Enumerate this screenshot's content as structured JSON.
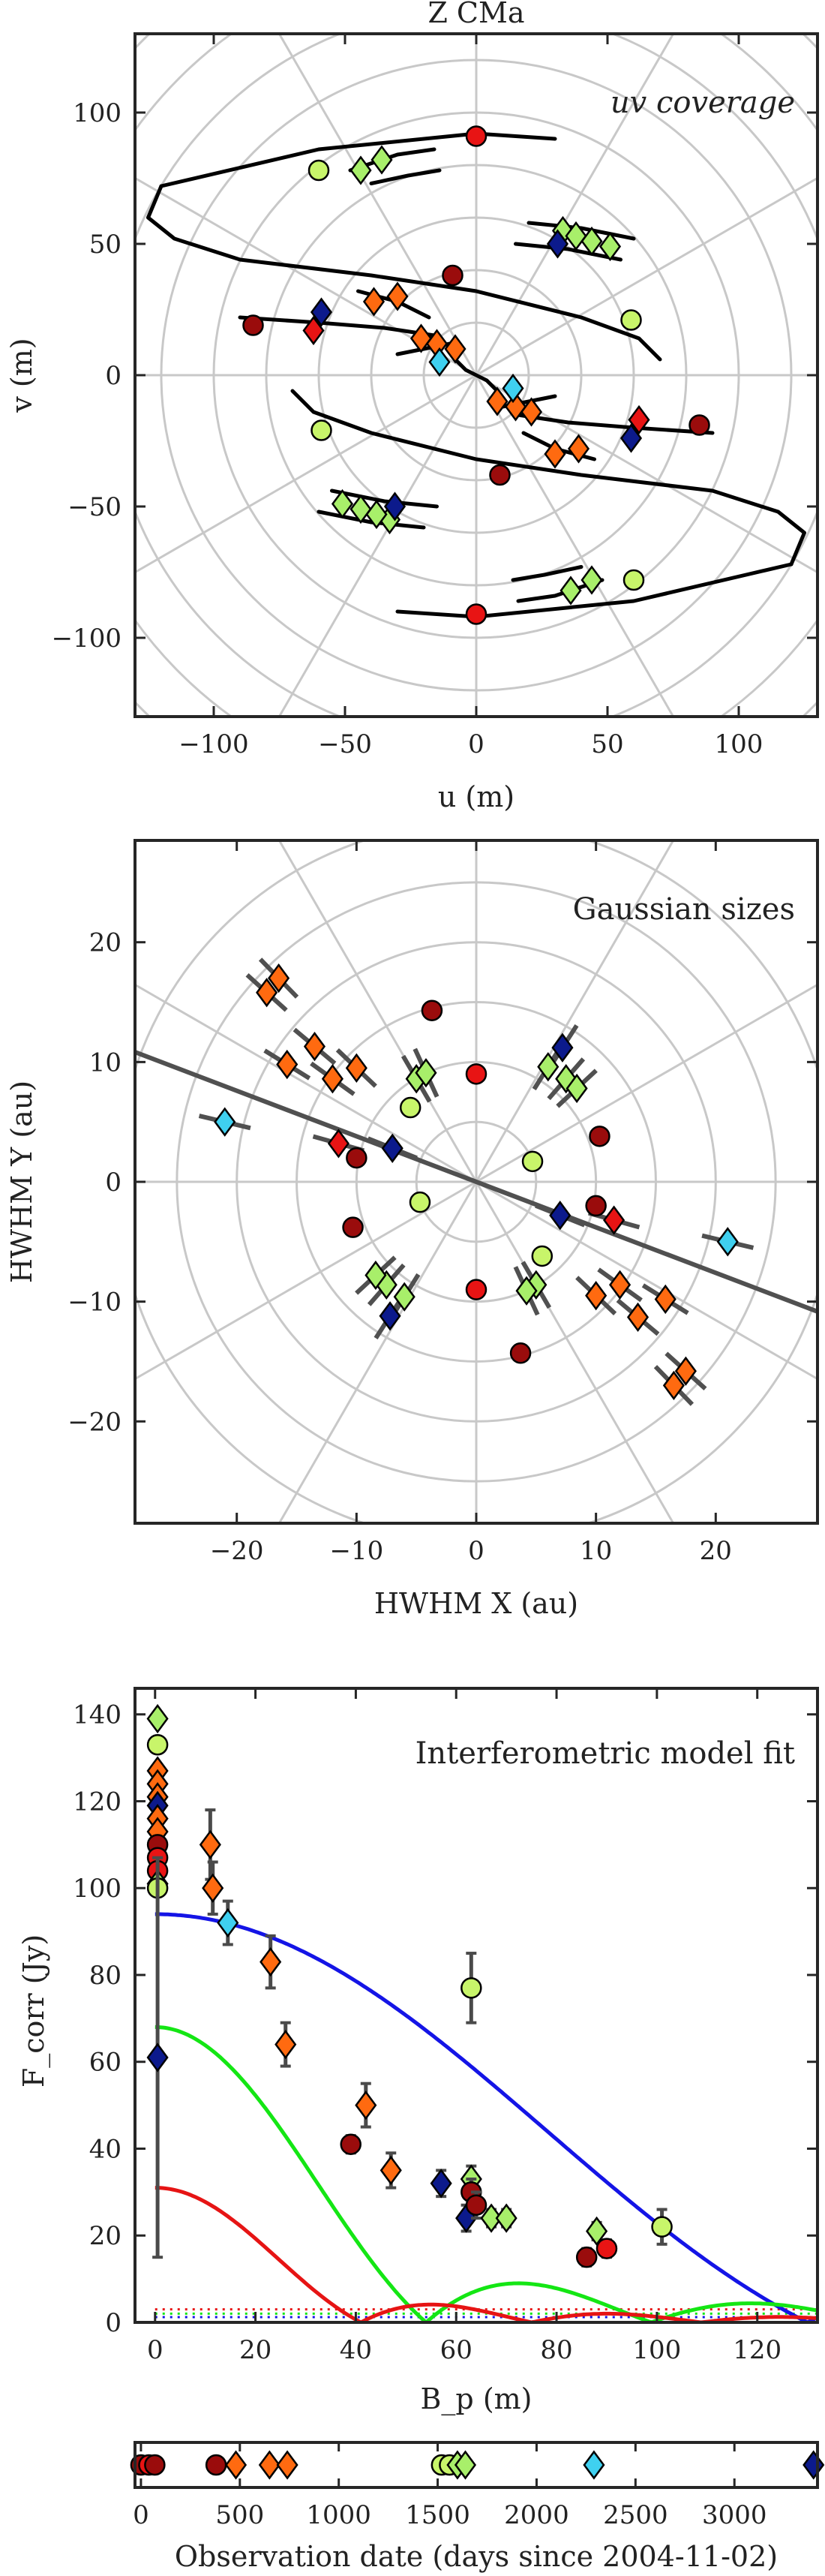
{
  "colors": {
    "cyan": "#3fd0f0",
    "lime": "#c8f56a",
    "lightgreen": "#a8ef6a",
    "orange": "#ff6a10",
    "red": "#e81414",
    "darkred": "#9a0c0c",
    "navy": "#0c1a8c",
    "curve_blue": "#1414e6",
    "curve_green": "#14e614",
    "curve_red": "#e61414",
    "track": "#000000",
    "errorbar": "#4a4a4a",
    "grid": "#c8c8c8"
  },
  "chart_data": [
    {
      "type": "scatter",
      "title": "Z CMa",
      "annotation": "uv coverage",
      "xlabel": "u (m)",
      "ylabel": "v (m)",
      "xlim": [
        -130,
        130
      ],
      "ylim": [
        -130,
        130
      ],
      "xticks": [
        -100,
        -50,
        0,
        50,
        100
      ],
      "yticks": [
        -100,
        -50,
        0,
        50,
        100
      ],
      "polar_grid": true,
      "points": [
        {
          "u": 0,
          "v": 91,
          "marker": "circle",
          "color": "red"
        },
        {
          "u": 0,
          "v": -91,
          "marker": "circle",
          "color": "red"
        },
        {
          "u": -85,
          "v": 19,
          "marker": "circle",
          "color": "darkred"
        },
        {
          "u": 85,
          "v": -19,
          "marker": "circle",
          "color": "darkred"
        },
        {
          "u": -9,
          "v": 38,
          "marker": "circle",
          "color": "darkred"
        },
        {
          "u": 9,
          "v": -38,
          "marker": "circle",
          "color": "darkred"
        },
        {
          "u": -60,
          "v": 78,
          "marker": "circle",
          "color": "lime"
        },
        {
          "u": 60,
          "v": -78,
          "marker": "circle",
          "color": "lime"
        },
        {
          "u": 59,
          "v": 21,
          "marker": "circle",
          "color": "lime"
        },
        {
          "u": -59,
          "v": -21,
          "marker": "circle",
          "color": "lime"
        },
        {
          "u": -44,
          "v": 78,
          "marker": "diamond",
          "color": "lightgreen"
        },
        {
          "u": -36,
          "v": 82,
          "marker": "diamond",
          "color": "lightgreen"
        },
        {
          "u": 44,
          "v": -78,
          "marker": "diamond",
          "color": "lightgreen"
        },
        {
          "u": 36,
          "v": -82,
          "marker": "diamond",
          "color": "lightgreen"
        },
        {
          "u": 33,
          "v": 55,
          "marker": "diamond",
          "color": "lightgreen"
        },
        {
          "u": 38,
          "v": 53,
          "marker": "diamond",
          "color": "lightgreen"
        },
        {
          "u": 44,
          "v": 51,
          "marker": "diamond",
          "color": "lightgreen"
        },
        {
          "u": 51,
          "v": 49,
          "marker": "diamond",
          "color": "lightgreen"
        },
        {
          "u": -33,
          "v": -55,
          "marker": "diamond",
          "color": "lightgreen"
        },
        {
          "u": -38,
          "v": -53,
          "marker": "diamond",
          "color": "lightgreen"
        },
        {
          "u": -44,
          "v": -51,
          "marker": "diamond",
          "color": "lightgreen"
        },
        {
          "u": -51,
          "v": -49,
          "marker": "diamond",
          "color": "lightgreen"
        },
        {
          "u": -39,
          "v": 28,
          "marker": "diamond",
          "color": "orange"
        },
        {
          "u": -30,
          "v": 30,
          "marker": "diamond",
          "color": "orange"
        },
        {
          "u": -21,
          "v": 14,
          "marker": "diamond",
          "color": "orange"
        },
        {
          "u": -15,
          "v": 12,
          "marker": "diamond",
          "color": "orange"
        },
        {
          "u": 39,
          "v": -28,
          "marker": "diamond",
          "color": "orange"
        },
        {
          "u": 30,
          "v": -30,
          "marker": "diamond",
          "color": "orange"
        },
        {
          "u": 21,
          "v": -14,
          "marker": "diamond",
          "color": "orange"
        },
        {
          "u": 15,
          "v": -12,
          "marker": "diamond",
          "color": "orange"
        },
        {
          "u": -62,
          "v": 17,
          "marker": "diamond",
          "color": "red"
        },
        {
          "u": 62,
          "v": -17,
          "marker": "diamond",
          "color": "red"
        },
        {
          "u": -59,
          "v": 24,
          "marker": "diamond",
          "color": "navy"
        },
        {
          "u": 59,
          "v": -24,
          "marker": "diamond",
          "color": "navy"
        },
        {
          "u": 31,
          "v": 50,
          "marker": "diamond",
          "color": "navy"
        },
        {
          "u": -31,
          "v": -50,
          "marker": "diamond",
          "color": "navy"
        },
        {
          "u": -14,
          "v": 5,
          "marker": "diamond",
          "color": "cyan"
        },
        {
          "u": 14,
          "v": -5,
          "marker": "diamond",
          "color": "cyan"
        },
        {
          "u": -8,
          "v": 10,
          "marker": "diamond",
          "color": "orange"
        },
        {
          "u": 8,
          "v": -10,
          "marker": "diamond",
          "color": "orange"
        }
      ]
    },
    {
      "type": "scatter",
      "annotation": "Gaussian sizes",
      "xlabel": "HWHM X (au)",
      "ylabel": "HWHM Y (au)",
      "xlim": [
        -28.5,
        28.5
      ],
      "ylim": [
        -28.5,
        28.5
      ],
      "xticks": [
        -20,
        -10,
        0,
        10,
        20
      ],
      "yticks": [
        -20,
        -10,
        0,
        10,
        20
      ],
      "polar_grid": true,
      "fit_line_slope": -0.38,
      "points": [
        {
          "x": 0,
          "y": 9,
          "marker": "circle",
          "color": "red"
        },
        {
          "x": 0,
          "y": -9,
          "marker": "circle",
          "color": "red"
        },
        {
          "x": -3.7,
          "y": 14.3,
          "marker": "circle",
          "color": "darkred"
        },
        {
          "x": 3.7,
          "y": -14.3,
          "marker": "circle",
          "color": "darkred"
        },
        {
          "x": -10,
          "y": 2,
          "marker": "circle",
          "color": "darkred"
        },
        {
          "x": 10,
          "y": -2,
          "marker": "circle",
          "color": "darkred"
        },
        {
          "x": -10.3,
          "y": -3.8,
          "marker": "circle",
          "color": "darkred"
        },
        {
          "x": 10.3,
          "y": 3.8,
          "marker": "circle",
          "color": "darkred"
        },
        {
          "x": -5.5,
          "y": 6.2,
          "marker": "circle",
          "color": "lime"
        },
        {
          "x": 5.5,
          "y": -6.2,
          "marker": "circle",
          "color": "lime"
        },
        {
          "x": -4.7,
          "y": -1.7,
          "marker": "circle",
          "color": "lime"
        },
        {
          "x": 4.7,
          "y": 1.7,
          "marker": "circle",
          "color": "lime"
        },
        {
          "x": -5,
          "y": 8.6,
          "marker": "diamond",
          "color": "lightgreen"
        },
        {
          "x": -4.2,
          "y": 9.1,
          "marker": "diamond",
          "color": "lightgreen"
        },
        {
          "x": 5,
          "y": -8.6,
          "marker": "diamond",
          "color": "lightgreen"
        },
        {
          "x": 4.2,
          "y": -9.1,
          "marker": "diamond",
          "color": "lightgreen"
        },
        {
          "x": 6,
          "y": 9.6,
          "marker": "diamond",
          "color": "lightgreen"
        },
        {
          "x": 7.5,
          "y": 8.6,
          "marker": "diamond",
          "color": "lightgreen"
        },
        {
          "x": 8.4,
          "y": 7.8,
          "marker": "diamond",
          "color": "lightgreen"
        },
        {
          "x": -6,
          "y": -9.6,
          "marker": "diamond",
          "color": "lightgreen"
        },
        {
          "x": -7.5,
          "y": -8.6,
          "marker": "diamond",
          "color": "lightgreen"
        },
        {
          "x": -8.4,
          "y": -7.8,
          "marker": "diamond",
          "color": "lightgreen"
        },
        {
          "x": -17.5,
          "y": 15.8,
          "marker": "diamond",
          "color": "orange"
        },
        {
          "x": -16.5,
          "y": 17,
          "marker": "diamond",
          "color": "orange"
        },
        {
          "x": -15.8,
          "y": 9.8,
          "marker": "diamond",
          "color": "orange"
        },
        {
          "x": -13.5,
          "y": 11.3,
          "marker": "diamond",
          "color": "orange"
        },
        {
          "x": -12,
          "y": 8.6,
          "marker": "diamond",
          "color": "orange"
        },
        {
          "x": -10,
          "y": 9.5,
          "marker": "diamond",
          "color": "orange"
        },
        {
          "x": 17.5,
          "y": -15.8,
          "marker": "diamond",
          "color": "orange"
        },
        {
          "x": 16.5,
          "y": -17,
          "marker": "diamond",
          "color": "orange"
        },
        {
          "x": 15.8,
          "y": -9.8,
          "marker": "diamond",
          "color": "orange"
        },
        {
          "x": 13.5,
          "y": -11.3,
          "marker": "diamond",
          "color": "orange"
        },
        {
          "x": 12,
          "y": -8.6,
          "marker": "diamond",
          "color": "orange"
        },
        {
          "x": 10,
          "y": -9.5,
          "marker": "diamond",
          "color": "orange"
        },
        {
          "x": -11.5,
          "y": 3.2,
          "marker": "diamond",
          "color": "red"
        },
        {
          "x": 11.5,
          "y": -3.2,
          "marker": "diamond",
          "color": "red"
        },
        {
          "x": -7,
          "y": 2.8,
          "marker": "diamond",
          "color": "navy"
        },
        {
          "x": 7,
          "y": -2.8,
          "marker": "diamond",
          "color": "navy"
        },
        {
          "x": 7.2,
          "y": 11.2,
          "marker": "diamond",
          "color": "navy"
        },
        {
          "x": -7.2,
          "y": -11.2,
          "marker": "diamond",
          "color": "navy"
        },
        {
          "x": -21,
          "y": 5,
          "marker": "diamond",
          "color": "cyan"
        },
        {
          "x": 21,
          "y": -5,
          "marker": "diamond",
          "color": "cyan"
        }
      ]
    },
    {
      "type": "scatter",
      "annotation": "Interferometric model fit",
      "xlabel": "B_p (m)",
      "ylabel": "F_corr (Jy)",
      "xlim": [
        -4,
        132
      ],
      "ylim": [
        0,
        146
      ],
      "xticks": [
        0,
        20,
        40,
        60,
        80,
        100,
        120
      ],
      "yticks": [
        0,
        20,
        40,
        60,
        80,
        100,
        120,
        140
      ],
      "points": [
        {
          "x": 0.5,
          "y": 139,
          "marker": "diamond",
          "color": "lightgreen"
        },
        {
          "x": 0.5,
          "y": 133,
          "marker": "circle",
          "color": "lime"
        },
        {
          "x": 0.5,
          "y": 127,
          "marker": "diamond",
          "color": "orange"
        },
        {
          "x": 0.5,
          "y": 124,
          "marker": "diamond",
          "color": "orange"
        },
        {
          "x": 0.5,
          "y": 121,
          "marker": "diamond",
          "color": "orange"
        },
        {
          "x": 0.5,
          "y": 119,
          "marker": "diamond",
          "color": "navy"
        },
        {
          "x": 0.5,
          "y": 116,
          "marker": "diamond",
          "color": "orange"
        },
        {
          "x": 0.5,
          "y": 113,
          "marker": "diamond",
          "color": "orange"
        },
        {
          "x": 0.5,
          "y": 110,
          "marker": "circle",
          "color": "darkred"
        },
        {
          "x": 0.5,
          "y": 107,
          "marker": "circle",
          "color": "red"
        },
        {
          "x": 0.5,
          "y": 104,
          "marker": "circle",
          "color": "red"
        },
        {
          "x": 0.5,
          "y": 101,
          "marker": "diamond",
          "color": "lightgreen"
        },
        {
          "x": 0.5,
          "y": 100,
          "marker": "circle",
          "color": "lime"
        },
        {
          "x": 0.5,
          "y": 61,
          "marker": "diamond",
          "color": "navy",
          "err": 46
        },
        {
          "x": 11,
          "y": 110,
          "marker": "diamond",
          "color": "orange",
          "err": 8
        },
        {
          "x": 11.5,
          "y": 100,
          "marker": "diamond",
          "color": "orange",
          "err": 6
        },
        {
          "x": 14.5,
          "y": 92,
          "marker": "diamond",
          "color": "cyan",
          "err": 5
        },
        {
          "x": 23,
          "y": 83,
          "marker": "diamond",
          "color": "orange",
          "err": 6
        },
        {
          "x": 26,
          "y": 64,
          "marker": "diamond",
          "color": "orange",
          "err": 5
        },
        {
          "x": 39,
          "y": 41,
          "marker": "circle",
          "color": "darkred",
          "err": 2
        },
        {
          "x": 42,
          "y": 50,
          "marker": "diamond",
          "color": "orange",
          "err": 5
        },
        {
          "x": 47,
          "y": 35,
          "marker": "diamond",
          "color": "orange",
          "err": 4
        },
        {
          "x": 57,
          "y": 32,
          "marker": "diamond",
          "color": "navy",
          "err": 3
        },
        {
          "x": 62,
          "y": 24,
          "marker": "diamond",
          "color": "navy",
          "err": 3
        },
        {
          "x": 63,
          "y": 77,
          "marker": "circle",
          "color": "lime",
          "err": 8
        },
        {
          "x": 63,
          "y": 33,
          "marker": "diamond",
          "color": "lightgreen",
          "err": 3
        },
        {
          "x": 63,
          "y": 30,
          "marker": "circle",
          "color": "darkred",
          "err": 3
        },
        {
          "x": 64,
          "y": 27,
          "marker": "circle",
          "color": "darkred",
          "err": 3
        },
        {
          "x": 67,
          "y": 24,
          "marker": "diamond",
          "color": "lightgreen",
          "err": 2
        },
        {
          "x": 70,
          "y": 24,
          "marker": "diamond",
          "color": "lightgreen",
          "err": 2
        },
        {
          "x": 86,
          "y": 15,
          "marker": "circle",
          "color": "darkred",
          "err": 2
        },
        {
          "x": 88,
          "y": 21,
          "marker": "diamond",
          "color": "lightgreen",
          "err": 2
        },
        {
          "x": 90,
          "y": 17,
          "marker": "circle",
          "color": "red",
          "err": 2
        },
        {
          "x": 101,
          "y": 22,
          "marker": "circle",
          "color": "lime",
          "err": 4
        }
      ],
      "curves": [
        {
          "color": "curve_blue",
          "amp": 94,
          "zero": 130
        },
        {
          "color": "curve_green",
          "amp": 68,
          "zero": 54
        },
        {
          "color": "curve_red",
          "amp": 31,
          "zero": 41
        }
      ],
      "dotted_levels": [
        3,
        2,
        1.2
      ]
    },
    {
      "type": "scatter",
      "xlabel": "Observation date (days since 2004-11-02)",
      "xlim": [
        -30,
        3420
      ],
      "xticks": [
        0,
        500,
        1000,
        1500,
        2000,
        2500,
        3000
      ],
      "points": [
        {
          "x": 0,
          "marker": "circle",
          "color": "darkred"
        },
        {
          "x": 40,
          "marker": "circle",
          "color": "red"
        },
        {
          "x": 70,
          "marker": "circle",
          "color": "darkred"
        },
        {
          "x": 380,
          "marker": "circle",
          "color": "darkred"
        },
        {
          "x": 480,
          "marker": "diamond",
          "color": "orange"
        },
        {
          "x": 650,
          "marker": "diamond",
          "color": "orange"
        },
        {
          "x": 740,
          "marker": "diamond",
          "color": "orange"
        },
        {
          "x": 1520,
          "marker": "circle",
          "color": "lime"
        },
        {
          "x": 1560,
          "marker": "circle",
          "color": "lime"
        },
        {
          "x": 1600,
          "marker": "diamond",
          "color": "lightgreen"
        },
        {
          "x": 1640,
          "marker": "diamond",
          "color": "lightgreen"
        },
        {
          "x": 2290,
          "marker": "diamond",
          "color": "cyan"
        },
        {
          "x": 3400,
          "marker": "diamond",
          "color": "navy"
        }
      ]
    }
  ]
}
